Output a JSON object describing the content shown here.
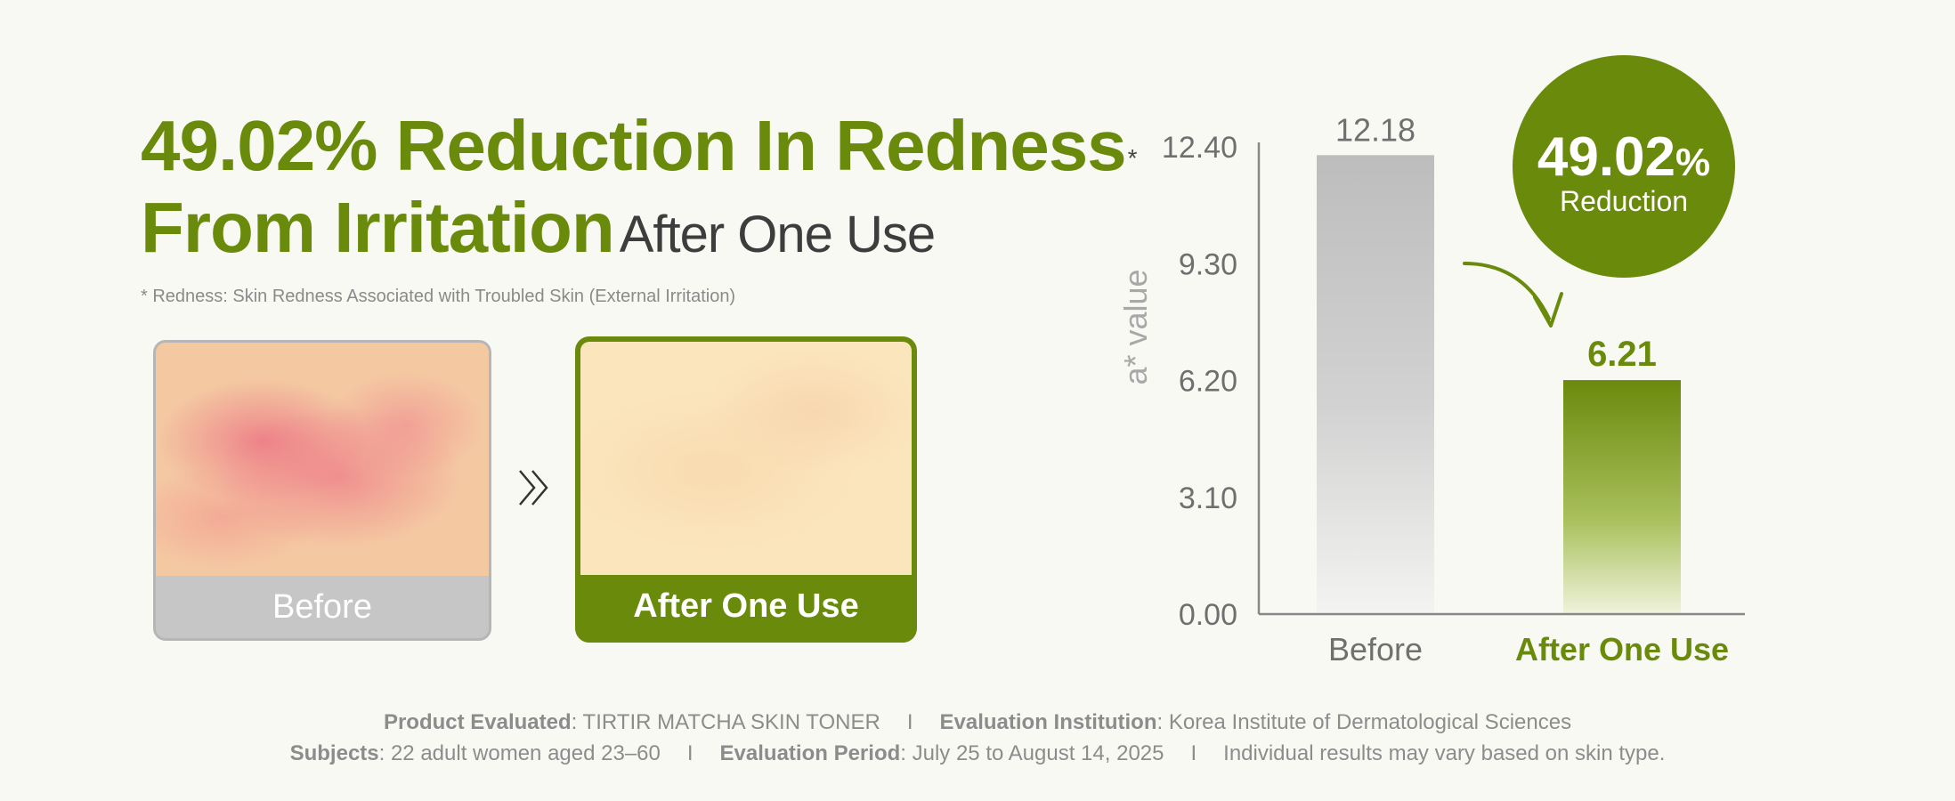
{
  "headline": {
    "line1": "49.02% Reduction In Redness",
    "asterisk": "*",
    "line2": "From Irritation",
    "line2_suffix": "After One Use"
  },
  "footnote": "* Redness: Skin Redness Associated with Troubled Skin (External Irritation)",
  "photos": {
    "before_label": "Before",
    "after_label": "After One Use"
  },
  "colors": {
    "brand_green": "#6a8a0c",
    "gray": "#c6c6c6",
    "background": "#f9f9f4"
  },
  "chart_data": {
    "type": "bar",
    "categories": [
      "Before",
      "After One Use"
    ],
    "values": [
      12.18,
      6.21
    ],
    "value_labels": [
      "12.18",
      "6.21"
    ],
    "ylabel": "a* value",
    "yticks": [
      "0.00",
      "3.10",
      "6.20",
      "9.30",
      "12.40"
    ],
    "ylim": [
      0,
      12.4
    ],
    "grid": false,
    "bar_colors": [
      "#c0c0c0",
      "#6a8a0c"
    ],
    "badge": {
      "value": "49.02",
      "unit": "%",
      "text": "Reduction"
    }
  },
  "info": {
    "product_label": "Product Evaluated",
    "product_value": ": TIRTIR MATCHA SKIN TONER",
    "institution_label": "Evaluation Institution",
    "institution_value": ": Korea Institute of Dermatological Sciences",
    "subjects_label": "Subjects",
    "subjects_value": ": 22 adult women aged 23–60",
    "period_label": "Evaluation Period",
    "period_value": ": July 25 to August 14, 2025",
    "disclaimer": "Individual results may vary based on skin type.",
    "separator": "I"
  }
}
